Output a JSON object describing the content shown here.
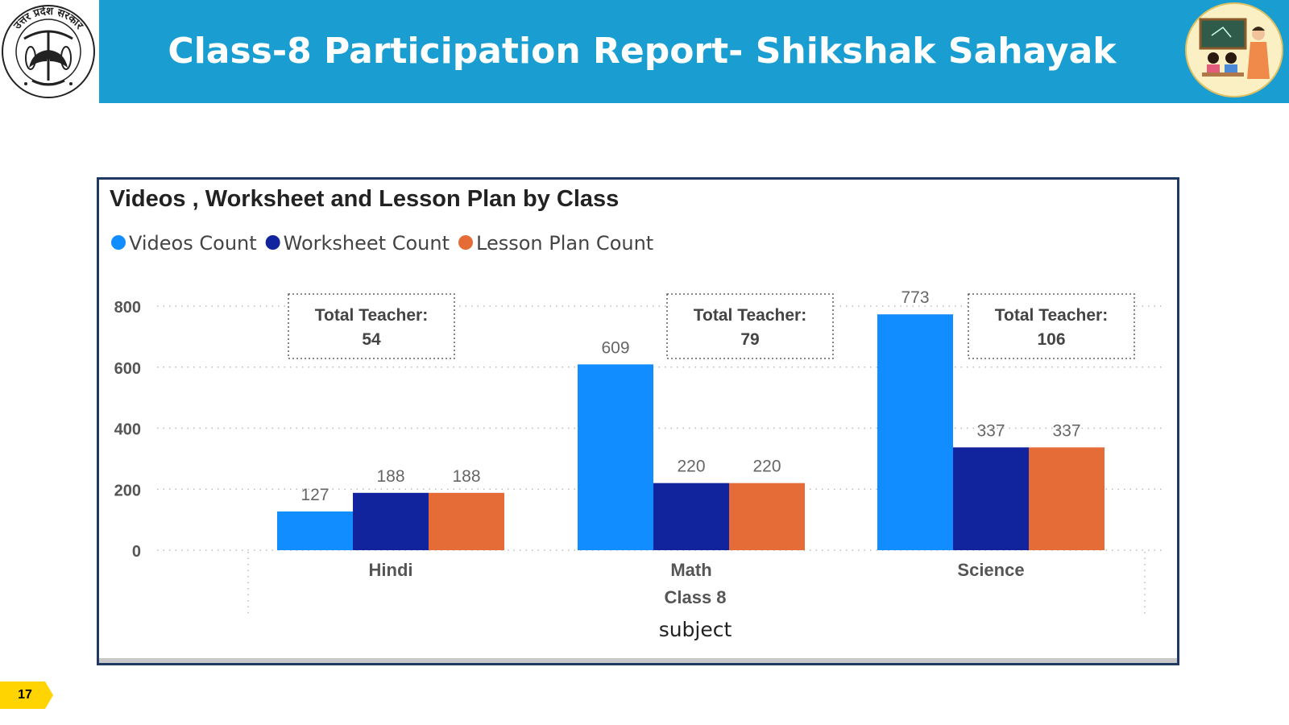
{
  "header": {
    "title": "Class-8 Participation Report- Shikshak Sahayak",
    "left_logo_icon": "up-government-emblem-icon",
    "right_logo_icon": "teacher-classroom-illustration-icon",
    "left_logo_text": "उत्तर प्रदेश सरकार"
  },
  "colors": {
    "header_bg": "#1a9ed2",
    "videos": "#118dff",
    "worksheet": "#12239e",
    "lesson": "#e66c37",
    "frame_border": "#1f3864",
    "badge": "#ffd400"
  },
  "page_number": "17",
  "chart_data": {
    "type": "bar",
    "title": "Videos , Worksheet and Lesson Plan by Class",
    "categories": [
      "Hindi",
      "Math",
      "Science"
    ],
    "group_label": "Class 8",
    "xlabel": "subject",
    "ylabel": "",
    "ylim": [
      0,
      800
    ],
    "yticks": [
      "0",
      "200",
      "400",
      "600",
      "800"
    ],
    "grid": true,
    "legend_position": "top-left",
    "series": [
      {
        "name": "Videos Count",
        "values": [
          127,
          609,
          773
        ]
      },
      {
        "name": "Worksheet Count",
        "values": [
          188,
          220,
          337
        ]
      },
      {
        "name": "Lesson Plan Count",
        "values": [
          188,
          220,
          337
        ]
      }
    ],
    "annotations": [
      {
        "label": "Total Teacher:",
        "value": "54"
      },
      {
        "label": "Total Teacher:",
        "value": "79"
      },
      {
        "label": "Total Teacher:",
        "value": "106"
      }
    ]
  }
}
